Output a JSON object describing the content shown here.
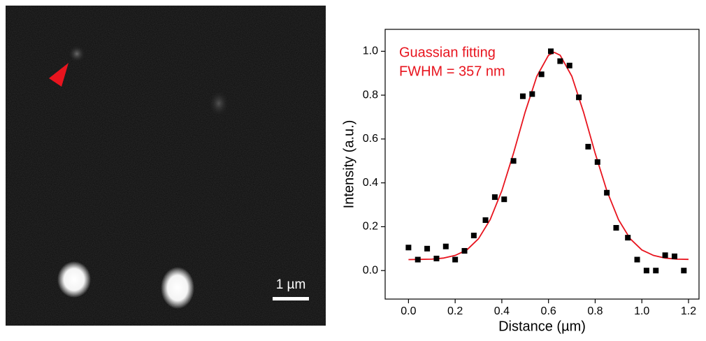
{
  "image_panel": {
    "scale_bar_label": "1 µm"
  },
  "chart_data": {
    "type": "scatter",
    "annotations": [
      "Guassian fitting",
      "FWHM = 357 nm"
    ],
    "annotation_color": "#e8141e",
    "x_label": "Distance (µm)",
    "y_label": "Intensity (a.u.)",
    "xlim": [
      -0.1,
      1.245
    ],
    "ylim": [
      -0.13,
      1.1
    ],
    "xticks": [
      {
        "value": 0,
        "label": "0.0"
      },
      0.2,
      0.4,
      0.6,
      0.8,
      {
        "value": 1,
        "label": "1.0"
      },
      1.2
    ],
    "yticks": [
      {
        "value": 0,
        "label": "0.0"
      },
      0.2,
      0.4,
      0.6,
      0.8,
      {
        "value": 1,
        "label": "1.0"
      }
    ],
    "grid": false,
    "series": [
      {
        "kind": "points",
        "color": "#000000",
        "x": [
          0.0,
          0.04,
          0.08,
          0.12,
          0.16,
          0.2,
          0.24,
          0.28,
          0.33,
          0.37,
          0.41,
          0.45,
          0.49,
          0.53,
          0.57,
          0.61,
          0.65,
          0.69,
          0.73,
          0.77,
          0.81,
          0.85,
          0.89,
          0.94,
          0.98,
          1.02,
          1.06,
          1.1,
          1.14,
          1.18
        ],
        "values": [
          0.105,
          0.05,
          0.1,
          0.055,
          0.11,
          0.05,
          0.09,
          0.16,
          0.23,
          0.335,
          0.325,
          0.5,
          0.795,
          0.805,
          0.895,
          1.0,
          0.955,
          0.935,
          0.79,
          0.565,
          0.495,
          0.355,
          0.195,
          0.15,
          0.05,
          0.0,
          0.0,
          0.07,
          0.065,
          0.0
        ]
      },
      {
        "kind": "line",
        "color": "#e8141e",
        "x": [
          0,
          0.05,
          0.1,
          0.15,
          0.2,
          0.25,
          0.3,
          0.35,
          0.4,
          0.45,
          0.5,
          0.55,
          0.6,
          0.625,
          0.65,
          0.7,
          0.75,
          0.8,
          0.85,
          0.9,
          0.95,
          1.0,
          1.05,
          1.1,
          1.15,
          1.2
        ],
        "values": [
          0.05,
          0.051,
          0.052,
          0.057,
          0.069,
          0.094,
          0.145,
          0.232,
          0.364,
          0.535,
          0.723,
          0.886,
          0.982,
          0.995,
          0.982,
          0.886,
          0.723,
          0.535,
          0.364,
          0.232,
          0.145,
          0.094,
          0.069,
          0.057,
          0.052,
          0.051
        ]
      }
    ]
  }
}
